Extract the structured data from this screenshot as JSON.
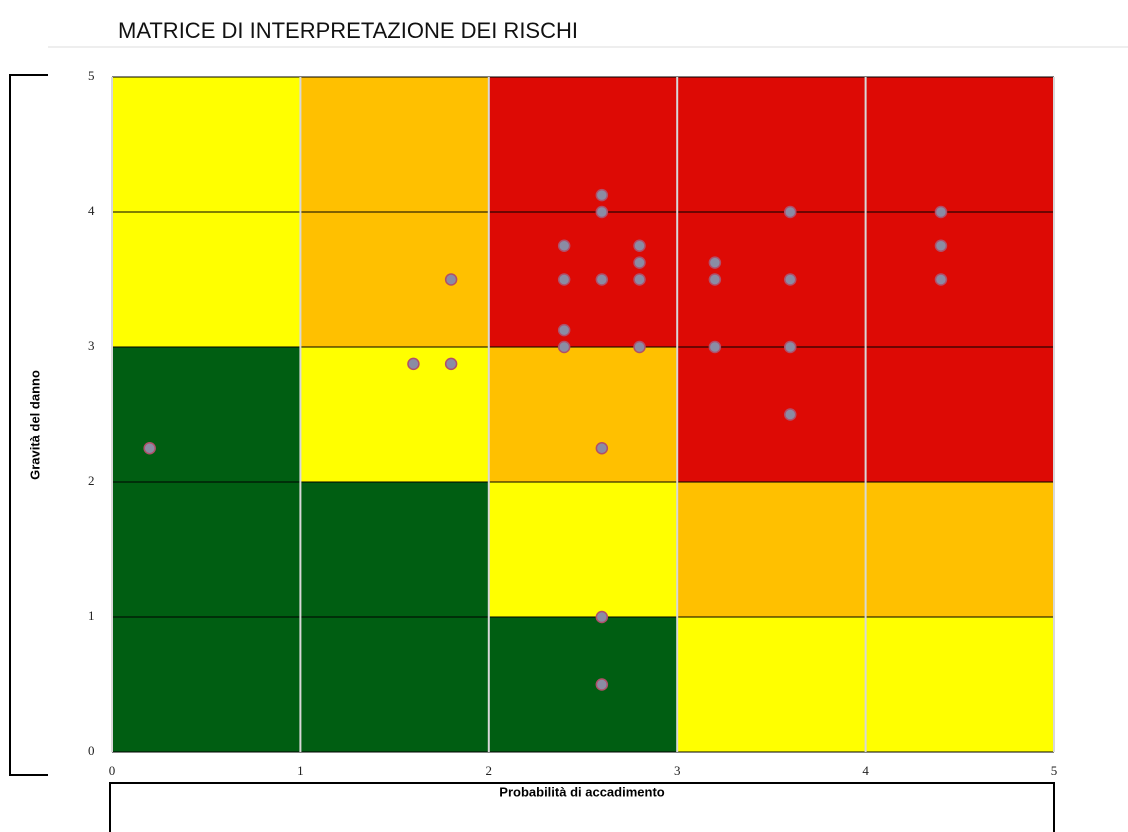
{
  "chart_data": {
    "type": "scatter",
    "title": "MATRICE DI INTERPRETAZIONE DEI RISCHI",
    "xlabel": "Probabilità di accadimento",
    "ylabel": "Gravità del danno",
    "xlim": [
      0,
      5
    ],
    "ylim": [
      0,
      5
    ],
    "xticks": [
      0,
      1,
      2,
      3,
      4,
      5
    ],
    "yticks": [
      0,
      1,
      2,
      3,
      4,
      5
    ],
    "cell_colors": [
      [
        "#005e12",
        "#005e12",
        "#005e12",
        "#ffff00",
        "#ffff00"
      ],
      [
        "#005e12",
        "#005e12",
        "#ffff00",
        "#ffc000",
        "#ffc000"
      ],
      [
        "#005e12",
        "#ffff00",
        "#ffc000",
        "#dd0a05",
        "#dd0a05"
      ],
      [
        "#ffff00",
        "#ffc000",
        "#dd0a05",
        "#dd0a05",
        "#dd0a05"
      ],
      [
        "#ffff00",
        "#ffc000",
        "#dd0a05",
        "#dd0a05",
        "#dd0a05"
      ]
    ],
    "color": "#8a8ca4",
    "edge_color": "#b0506a",
    "x": [
      0.2,
      1.6,
      1.8,
      1.8,
      2.4,
      2.4,
      2.4,
      2.4,
      2.6,
      2.6,
      2.6,
      2.6,
      2.6,
      2.6,
      2.8,
      2.8,
      2.8,
      2.8,
      3.2,
      3.2,
      3.2,
      3.6,
      3.6,
      3.6,
      3.6,
      4.4,
      4.4,
      4.4
    ],
    "y": [
      2.25,
      2.875,
      2.875,
      3.5,
      3.75,
      3.5,
      3.125,
      3.0,
      4.125,
      4.0,
      3.5,
      2.25,
      1.0,
      0.5,
      3.75,
      3.625,
      3.5,
      3.0,
      3.625,
      3.5,
      3.0,
      4.0,
      3.5,
      3.0,
      2.5,
      4.0,
      3.75,
      3.5
    ]
  }
}
